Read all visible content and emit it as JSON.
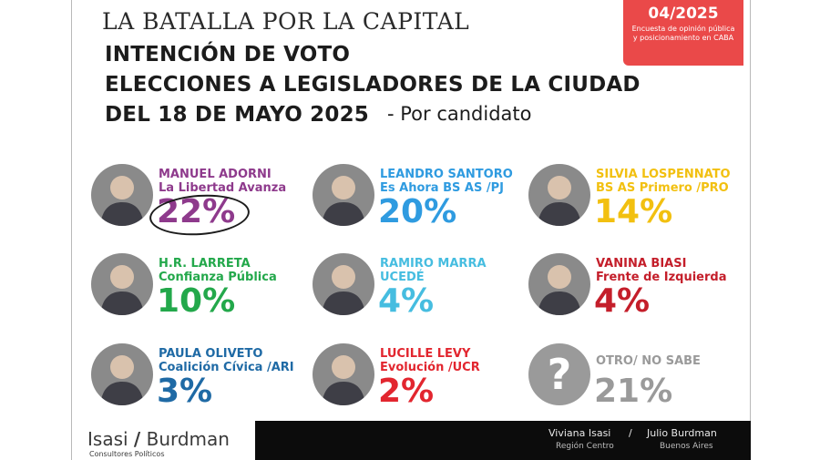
{
  "header": {
    "brand": "LA BATALLA POR LA CAPITAL",
    "date": "04/2025",
    "survey_note": "Encuesta de opinión pública y posicionamiento en CABA",
    "title_line1": "INTENCIÓN DE VOTO",
    "title_line2": "ELECCIONES A LEGISLADORES DE LA CIUDAD",
    "title_line3": "DEL 18 DE MAYO 2025",
    "subtitle": "- Por candidato"
  },
  "chart_data": {
    "type": "table",
    "title": "INTENCIÓN DE VOTO",
    "unit": "%",
    "categories": [
      "MANUEL ADORNI",
      "LEANDRO SANTORO",
      "SILVIA LOSPENNATO",
      "H.R. LARRETA",
      "RAMIRO MARRA",
      "VANINA BIASI",
      "PAULA OLIVETO",
      "LUCILLE LEVY",
      "OTRO/ NO SABE"
    ],
    "values": [
      22,
      20,
      14,
      10,
      4,
      4,
      3,
      2,
      21
    ],
    "candidates": [
      {
        "name": "MANUEL ADORNI",
        "party": "La Libertad Avanza",
        "value": 22,
        "label": "22%",
        "color": "#8e3a8c",
        "highlight": true
      },
      {
        "name": "LEANDRO SANTORO",
        "party": "Es Ahora BS AS /PJ",
        "value": 20,
        "label": "20%",
        "color": "#2f9be0"
      },
      {
        "name": "SILVIA LOSPENNATO",
        "party": "BS AS Primero /PRO",
        "value": 14,
        "label": "14%",
        "color": "#f2c010"
      },
      {
        "name": "H.R. LARRETA",
        "party": "Confianza Pública",
        "value": 10,
        "label": "10%",
        "color": "#23a84b"
      },
      {
        "name": "RAMIRO MARRA",
        "party": "UCEDÉ",
        "value": 4,
        "label": "4%",
        "color": "#46bde0"
      },
      {
        "name": "VANINA BIASI",
        "party": "Frente de Izquierda",
        "value": 4,
        "label": "4%",
        "color": "#c41e2a"
      },
      {
        "name": "PAULA OLIVETO",
        "party": "Coalición Cívica /ARI",
        "value": 3,
        "label": "3%",
        "color": "#1f6aa5"
      },
      {
        "name": "LUCILLE LEVY",
        "party": "Evolución /UCR",
        "value": 2,
        "label": "2%",
        "color": "#e2262f"
      },
      {
        "name": "OTRO/ NO SABE",
        "party": "",
        "value": 21,
        "label": "21%",
        "color": "#9a9a9a",
        "unknown": true
      }
    ]
  },
  "footer": {
    "logo_left": "Isasi",
    "logo_sep": "/",
    "logo_right": "Burdman",
    "logo_sub": "Consultores Políticos",
    "person1_name": "Viviana Isasi",
    "person1_region": "Región Centro",
    "person_sep": "/",
    "person2_name": "Julio Burdman",
    "person2_region": "Buenos Aires"
  },
  "colors": {
    "accent_red": "#ea4949",
    "footer_bg": "#0c0c0c"
  }
}
